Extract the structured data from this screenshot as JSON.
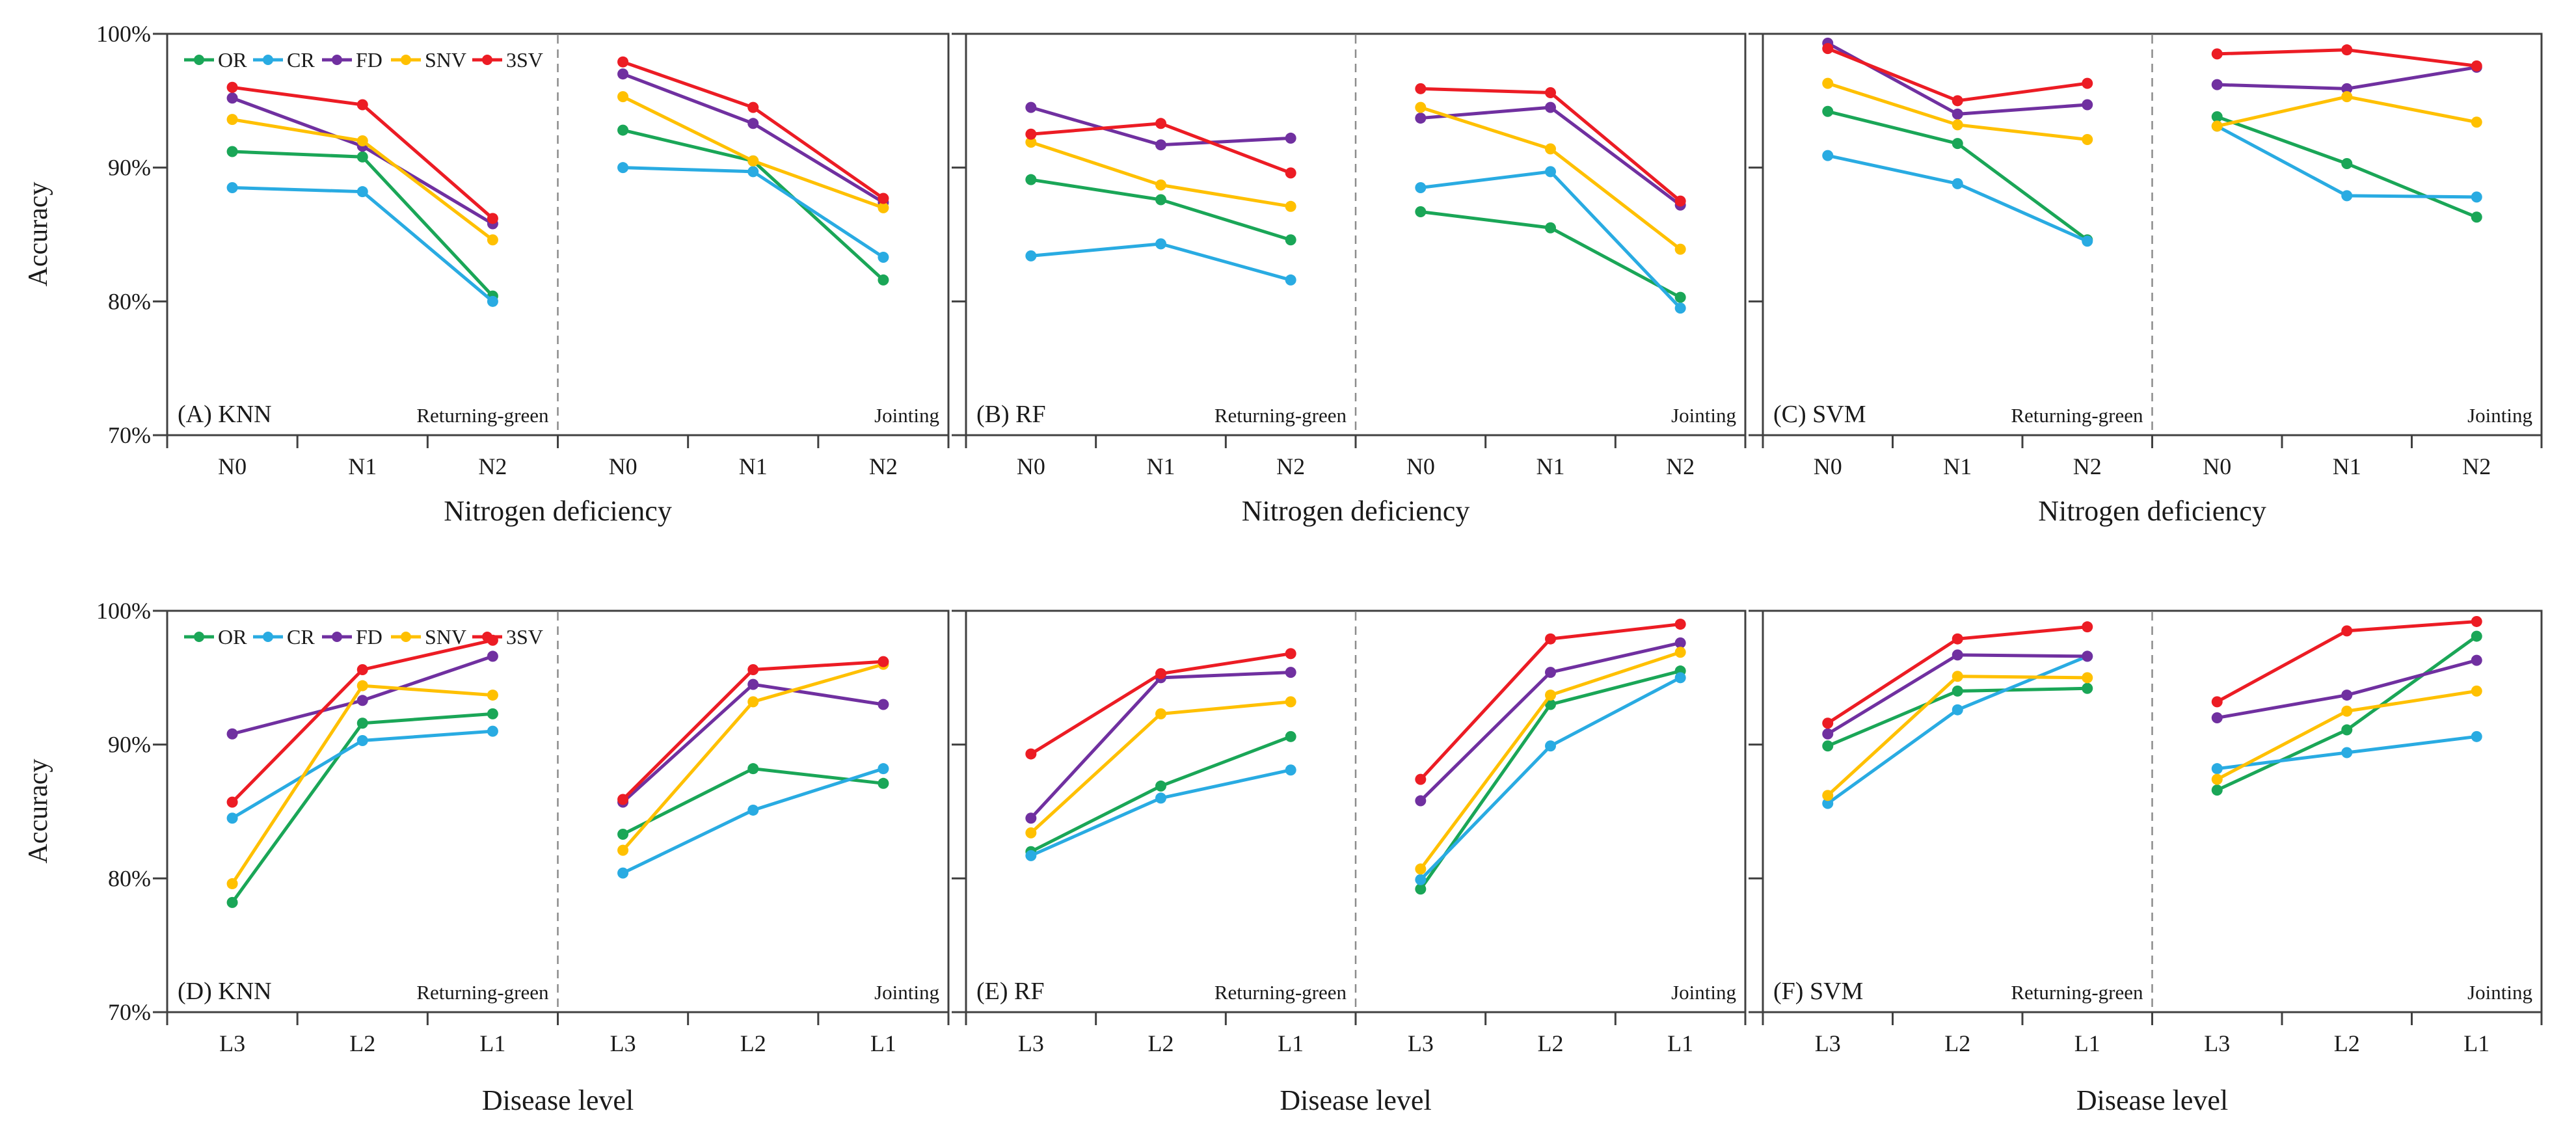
{
  "figure": {
    "background": "#ffffff",
    "ylabel": "Accuracy",
    "y_tick_labels": [
      "100%",
      "90%",
      "80%",
      "70%"
    ],
    "y_tick_values": [
      100,
      90,
      80,
      70
    ],
    "ylim": [
      70,
      100
    ],
    "legend": [
      "OR",
      "CR",
      "FD",
      "SNV",
      "3SV"
    ],
    "series_colors": {
      "OR": "#1aa657",
      "CR": "#29abe2",
      "FD": "#7030a0",
      "SNV": "#ffc000",
      "3SV": "#ec1c24"
    },
    "axis_color": "#404040",
    "divider_color": "#8c8c8c",
    "stage_labels": [
      "Returning-green",
      "Jointing"
    ]
  },
  "chart_data": [
    {
      "type": "line",
      "panel_label": "(A) KNN",
      "model": "KNN",
      "xlabel": "Nitrogen deficiency",
      "categories": [
        "N0",
        "N1",
        "N2"
      ],
      "ylim": [
        70,
        100
      ],
      "grid": false,
      "legend_position": "top-left",
      "legend_visible": true,
      "halves": [
        {
          "stage": "Returning-green",
          "series": [
            {
              "name": "OR",
              "values": [
                91.2,
                90.8,
                80.4
              ]
            },
            {
              "name": "CR",
              "values": [
                88.5,
                88.2,
                80.0
              ]
            },
            {
              "name": "FD",
              "values": [
                95.2,
                91.6,
                85.8
              ]
            },
            {
              "name": "SNV",
              "values": [
                93.6,
                92.0,
                84.6
              ]
            },
            {
              "name": "3SV",
              "values": [
                96.0,
                94.7,
                86.2
              ]
            }
          ]
        },
        {
          "stage": "Jointing",
          "series": [
            {
              "name": "OR",
              "values": [
                92.8,
                90.5,
                81.6
              ]
            },
            {
              "name": "CR",
              "values": [
                90.0,
                89.7,
                83.3
              ]
            },
            {
              "name": "FD",
              "values": [
                97.0,
                93.3,
                87.4
              ]
            },
            {
              "name": "SNV",
              "values": [
                95.3,
                90.5,
                87.0
              ]
            },
            {
              "name": "3SV",
              "values": [
                97.9,
                94.5,
                87.7
              ]
            }
          ]
        }
      ]
    },
    {
      "type": "line",
      "panel_label": "(B) RF",
      "model": "RF",
      "xlabel": "Nitrogen deficiency",
      "categories": [
        "N0",
        "N1",
        "N2"
      ],
      "ylim": [
        70,
        100
      ],
      "grid": false,
      "legend_visible": false,
      "halves": [
        {
          "stage": "Returning-green",
          "series": [
            {
              "name": "OR",
              "values": [
                89.1,
                87.6,
                84.6
              ]
            },
            {
              "name": "CR",
              "values": [
                83.4,
                84.3,
                81.6
              ]
            },
            {
              "name": "FD",
              "values": [
                94.5,
                91.7,
                92.2
              ]
            },
            {
              "name": "SNV",
              "values": [
                91.9,
                88.7,
                87.1
              ]
            },
            {
              "name": "3SV",
              "values": [
                92.5,
                93.3,
                89.6
              ]
            }
          ]
        },
        {
          "stage": "Jointing",
          "series": [
            {
              "name": "OR",
              "values": [
                86.7,
                85.5,
                80.3
              ]
            },
            {
              "name": "CR",
              "values": [
                88.5,
                89.7,
                79.5
              ]
            },
            {
              "name": "FD",
              "values": [
                93.7,
                94.5,
                87.2
              ]
            },
            {
              "name": "SNV",
              "values": [
                94.5,
                91.4,
                83.9
              ]
            },
            {
              "name": "3SV",
              "values": [
                95.9,
                95.6,
                87.5
              ]
            }
          ]
        }
      ]
    },
    {
      "type": "line",
      "panel_label": "(C) SVM",
      "model": "SVM",
      "xlabel": "Nitrogen deficiency",
      "categories": [
        "N0",
        "N1",
        "N2"
      ],
      "ylim": [
        70,
        100
      ],
      "grid": false,
      "legend_visible": false,
      "halves": [
        {
          "stage": "Returning-green",
          "series": [
            {
              "name": "OR",
              "values": [
                94.2,
                91.8,
                84.6
              ]
            },
            {
              "name": "CR",
              "values": [
                90.9,
                88.8,
                84.5
              ]
            },
            {
              "name": "FD",
              "values": [
                99.3,
                94.0,
                94.7
              ]
            },
            {
              "name": "SNV",
              "values": [
                96.3,
                93.2,
                92.1
              ]
            },
            {
              "name": "3SV",
              "values": [
                98.9,
                95.0,
                96.3
              ]
            }
          ]
        },
        {
          "stage": "Jointing",
          "series": [
            {
              "name": "OR",
              "values": [
                93.8,
                90.3,
                86.3
              ]
            },
            {
              "name": "CR",
              "values": [
                93.1,
                87.9,
                87.8
              ]
            },
            {
              "name": "FD",
              "values": [
                96.2,
                95.9,
                97.5
              ]
            },
            {
              "name": "SNV",
              "values": [
                93.1,
                95.3,
                93.4
              ]
            },
            {
              "name": "3SV",
              "values": [
                98.5,
                98.8,
                97.6
              ]
            }
          ]
        }
      ]
    },
    {
      "type": "line",
      "panel_label": "(D) KNN",
      "model": "KNN",
      "xlabel": "Disease level",
      "categories": [
        "L3",
        "L2",
        "L1"
      ],
      "ylim": [
        70,
        100
      ],
      "grid": false,
      "legend_position": "top-left",
      "legend_visible": true,
      "halves": [
        {
          "stage": "Returning-green",
          "series": [
            {
              "name": "OR",
              "values": [
                78.2,
                91.6,
                92.3
              ]
            },
            {
              "name": "CR",
              "values": [
                84.5,
                90.3,
                91.0
              ]
            },
            {
              "name": "FD",
              "values": [
                90.8,
                93.3,
                96.6
              ]
            },
            {
              "name": "SNV",
              "values": [
                79.6,
                94.4,
                93.7
              ]
            },
            {
              "name": "3SV",
              "values": [
                85.7,
                95.6,
                97.8
              ]
            }
          ]
        },
        {
          "stage": "Jointing",
          "series": [
            {
              "name": "OR",
              "values": [
                83.3,
                88.2,
                87.1
              ]
            },
            {
              "name": "CR",
              "values": [
                80.4,
                85.1,
                88.2
              ]
            },
            {
              "name": "FD",
              "values": [
                85.7,
                94.5,
                93.0
              ]
            },
            {
              "name": "SNV",
              "values": [
                82.1,
                93.2,
                96.0
              ]
            },
            {
              "name": "3SV",
              "values": [
                85.9,
                95.6,
                96.2
              ]
            }
          ]
        }
      ]
    },
    {
      "type": "line",
      "panel_label": "(E) RF",
      "model": "RF",
      "xlabel": "Disease level",
      "categories": [
        "L3",
        "L2",
        "L1"
      ],
      "ylim": [
        70,
        100
      ],
      "grid": false,
      "legend_visible": false,
      "halves": [
        {
          "stage": "Returning-green",
          "series": [
            {
              "name": "OR",
              "values": [
                82.0,
                86.9,
                90.6
              ]
            },
            {
              "name": "CR",
              "values": [
                81.7,
                86.0,
                88.1
              ]
            },
            {
              "name": "FD",
              "values": [
                84.5,
                95.0,
                95.4
              ]
            },
            {
              "name": "SNV",
              "values": [
                83.4,
                92.3,
                93.2
              ]
            },
            {
              "name": "3SV",
              "values": [
                89.3,
                95.3,
                96.8
              ]
            }
          ]
        },
        {
          "stage": "Jointing",
          "series": [
            {
              "name": "OR",
              "values": [
                79.2,
                93.0,
                95.5
              ]
            },
            {
              "name": "CR",
              "values": [
                79.9,
                89.9,
                95.0
              ]
            },
            {
              "name": "FD",
              "values": [
                85.8,
                95.4,
                97.6
              ]
            },
            {
              "name": "SNV",
              "values": [
                80.7,
                93.7,
                96.9
              ]
            },
            {
              "name": "3SV",
              "values": [
                87.4,
                97.9,
                99.0
              ]
            }
          ]
        }
      ]
    },
    {
      "type": "line",
      "panel_label": "(F) SVM",
      "model": "SVM",
      "xlabel": "Disease level",
      "categories": [
        "L3",
        "L2",
        "L1"
      ],
      "ylim": [
        70,
        100
      ],
      "grid": false,
      "legend_visible": false,
      "halves": [
        {
          "stage": "Returning-green",
          "series": [
            {
              "name": "OR",
              "values": [
                89.9,
                94.0,
                94.2
              ]
            },
            {
              "name": "CR",
              "values": [
                85.6,
                92.6,
                96.6
              ]
            },
            {
              "name": "FD",
              "values": [
                90.8,
                96.7,
                96.6
              ]
            },
            {
              "name": "SNV",
              "values": [
                86.2,
                95.1,
                95.0
              ]
            },
            {
              "name": "3SV",
              "values": [
                91.6,
                97.9,
                98.8
              ]
            }
          ]
        },
        {
          "stage": "Jointing",
          "series": [
            {
              "name": "OR",
              "values": [
                86.6,
                91.1,
                98.1
              ]
            },
            {
              "name": "CR",
              "values": [
                88.2,
                89.4,
                90.6
              ]
            },
            {
              "name": "FD",
              "values": [
                92.0,
                93.7,
                96.3
              ]
            },
            {
              "name": "SNV",
              "values": [
                87.4,
                92.5,
                94.0
              ]
            },
            {
              "name": "3SV",
              "values": [
                93.2,
                98.5,
                99.2
              ]
            }
          ]
        }
      ]
    }
  ]
}
